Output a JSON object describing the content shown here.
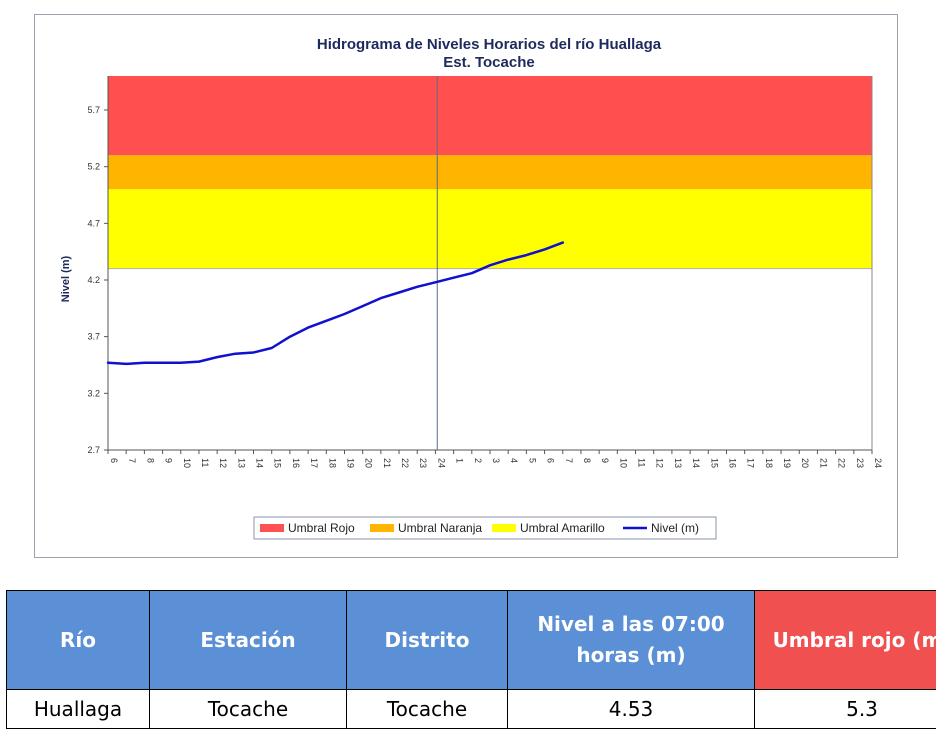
{
  "chart_data": {
    "type": "line",
    "title": "Hidrograma de Niveles Horarios del río Huallaga",
    "subtitle": "Est. Tocache",
    "ylabel": "Nivel (m)",
    "xlabel": "",
    "ylim": [
      2.7,
      6.0
    ],
    "yticks": [
      2.7,
      3.2,
      3.7,
      4.2,
      4.7,
      5.2,
      5.7
    ],
    "xtick_labels": [
      "6",
      "7",
      "8",
      "9",
      "10",
      "11",
      "12",
      "13",
      "14",
      "15",
      "16",
      "17",
      "18",
      "19",
      "20",
      "21",
      "22",
      "23",
      "24",
      "1",
      "2",
      "3",
      "4",
      "5",
      "6",
      "7",
      "8",
      "9",
      "10",
      "11",
      "12",
      "13",
      "14",
      "15",
      "16",
      "17",
      "18",
      "19",
      "20",
      "21",
      "22",
      "23",
      "24"
    ],
    "grid": false,
    "legend_position": "bottom",
    "bands": [
      {
        "name": "Umbral Rojo",
        "from": 5.3,
        "to": 6.0,
        "color": "#ff4f4f"
      },
      {
        "name": "Umbral Naranja",
        "from": 5.0,
        "to": 5.3,
        "color": "#ffb400"
      },
      {
        "name": "Umbral Amarillo",
        "from": 4.3,
        "to": 5.0,
        "color": "#ffff00"
      }
    ],
    "series": [
      {
        "name": "Nivel (m)",
        "color": "#1010d0",
        "x": [
          0,
          1,
          2,
          3,
          4,
          5,
          6,
          7,
          8,
          9,
          10,
          11,
          12,
          13,
          14,
          15,
          16,
          17,
          18,
          19,
          20,
          21,
          22,
          23,
          24,
          25
        ],
        "values": [
          3.47,
          3.46,
          3.47,
          3.47,
          3.47,
          3.48,
          3.52,
          3.55,
          3.56,
          3.6,
          3.7,
          3.78,
          3.84,
          3.9,
          3.97,
          4.04,
          4.09,
          4.14,
          4.18,
          4.22,
          4.26,
          4.33,
          4.38,
          4.42,
          4.47,
          4.53
        ]
      }
    ],
    "divider_index": 18.1
  },
  "table": {
    "headers": [
      "Río",
      "Estación",
      "Distrito",
      "Nivel a las 07:00 horas (m)",
      "Umbral rojo (m)"
    ],
    "row": [
      "Huallaga",
      "Tocache",
      "Tocache",
      "4.53",
      "5.3"
    ]
  }
}
